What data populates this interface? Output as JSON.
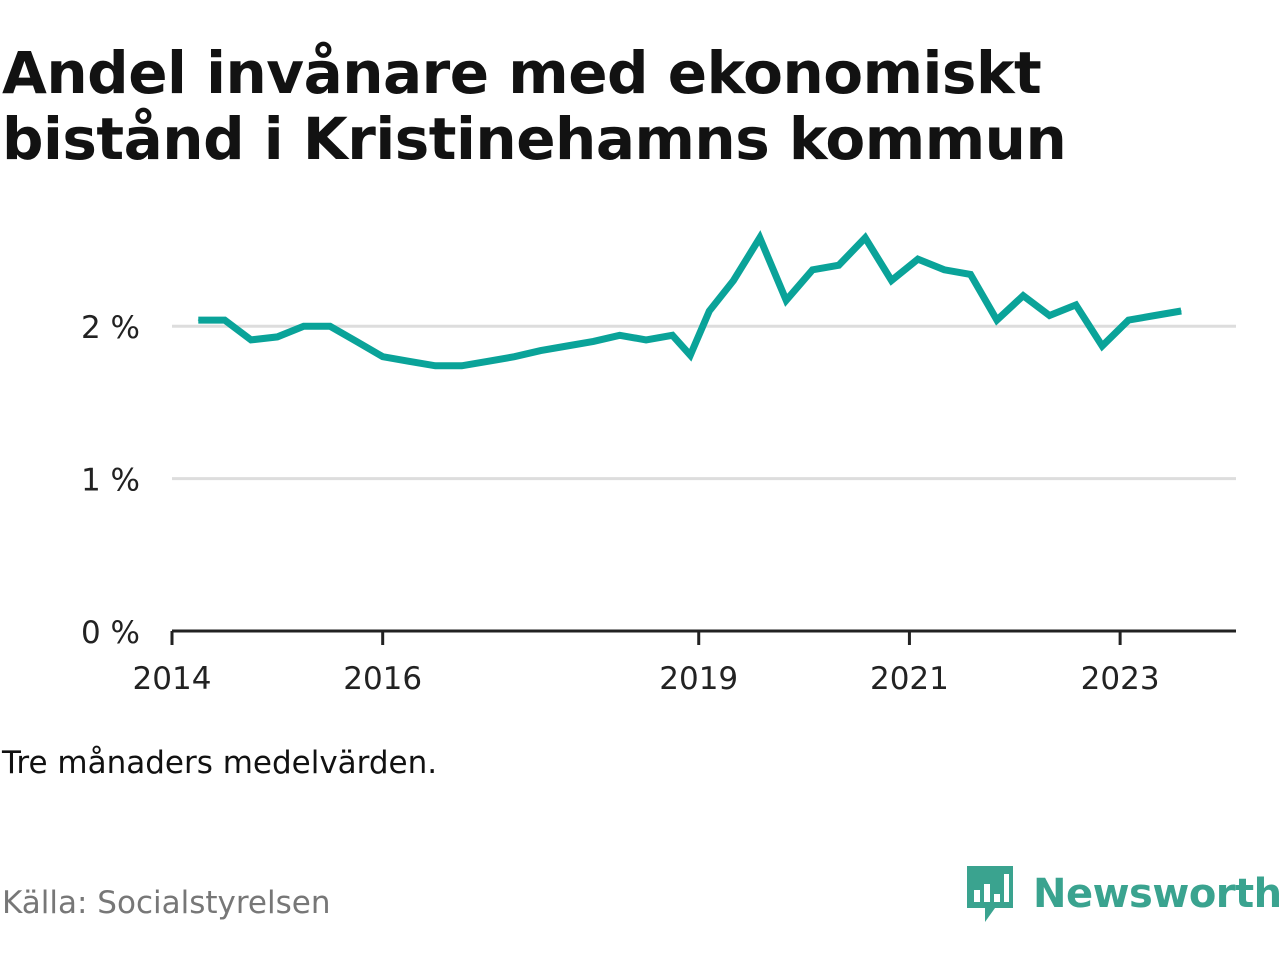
{
  "title": "Andel invånare med ekonomiskt bistånd i Kristinehamns kommun",
  "note": "Tre månaders medelvärden.",
  "source": "Källa: Socialstyrelsen",
  "brand": "Newsworthy",
  "colors": {
    "line": "#0aa399",
    "grid": "#dddddd",
    "axis": "#222222",
    "brand": "#3aa38f",
    "source": "#777777"
  },
  "icons": {
    "brand_logo": "newsworthy-bar-chart-icon"
  },
  "chart_data": {
    "type": "line",
    "title": "Andel invånare med ekonomiskt bistånd i Kristinehamns kommun",
    "xlabel": "",
    "ylabel": "",
    "xlim": [
      2014.0,
      2024.1
    ],
    "ylim": [
      0,
      2.5
    ],
    "x_ticks": [
      2014,
      2016,
      2019,
      2021,
      2023
    ],
    "y_ticks": [
      0,
      1,
      2
    ],
    "y_tick_labels": [
      "0 %",
      "1 %",
      "2 %"
    ],
    "grid": true,
    "series": [
      {
        "values": [
          {
            "x": 2014.25,
            "y": 2.04
          },
          {
            "x": 2014.5,
            "y": 2.04
          },
          {
            "x": 2014.75,
            "y": 1.91
          },
          {
            "x": 2015.0,
            "y": 1.93
          },
          {
            "x": 2015.25,
            "y": 2.0
          },
          {
            "x": 2015.5,
            "y": 2.0
          },
          {
            "x": 2015.75,
            "y": 1.9
          },
          {
            "x": 2016.0,
            "y": 1.8
          },
          {
            "x": 2016.25,
            "y": 1.77
          },
          {
            "x": 2016.5,
            "y": 1.74
          },
          {
            "x": 2016.75,
            "y": 1.74
          },
          {
            "x": 2017.0,
            "y": 1.77
          },
          {
            "x": 2017.25,
            "y": 1.8
          },
          {
            "x": 2017.5,
            "y": 1.84
          },
          {
            "x": 2017.75,
            "y": 1.87
          },
          {
            "x": 2018.0,
            "y": 1.9
          },
          {
            "x": 2018.25,
            "y": 1.94
          },
          {
            "x": 2018.5,
            "y": 1.91
          },
          {
            "x": 2018.75,
            "y": 1.94
          },
          {
            "x": 2018.92,
            "y": 1.81
          },
          {
            "x": 2019.1,
            "y": 2.1
          },
          {
            "x": 2019.33,
            "y": 2.3
          },
          {
            "x": 2019.58,
            "y": 2.58
          },
          {
            "x": 2019.83,
            "y": 2.17
          },
          {
            "x": 2020.08,
            "y": 2.37
          },
          {
            "x": 2020.33,
            "y": 2.4
          },
          {
            "x": 2020.58,
            "y": 2.58
          },
          {
            "x": 2020.83,
            "y": 2.3
          },
          {
            "x": 2021.08,
            "y": 2.44
          },
          {
            "x": 2021.33,
            "y": 2.37
          },
          {
            "x": 2021.58,
            "y": 2.34
          },
          {
            "x": 2021.83,
            "y": 2.04
          },
          {
            "x": 2022.08,
            "y": 2.2
          },
          {
            "x": 2022.33,
            "y": 2.07
          },
          {
            "x": 2022.58,
            "y": 2.14
          },
          {
            "x": 2022.83,
            "y": 1.87
          },
          {
            "x": 2023.08,
            "y": 2.04
          },
          {
            "x": 2023.33,
            "y": 2.07
          },
          {
            "x": 2023.58,
            "y": 2.1
          }
        ]
      }
    ]
  }
}
